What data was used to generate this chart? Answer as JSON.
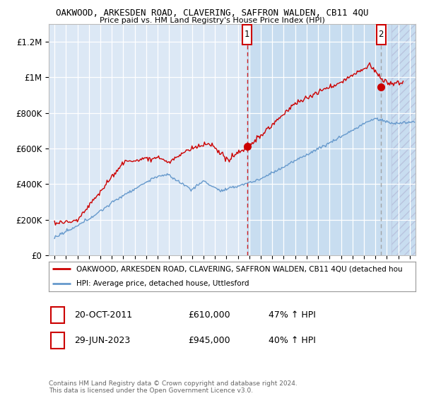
{
  "title1": "OAKWOOD, ARKESDEN ROAD, CLAVERING, SAFFRON WALDEN, CB11 4QU",
  "title2": "Price paid vs. HM Land Registry's House Price Index (HPI)",
  "ylabel_ticks": [
    "£0",
    "£200K",
    "£400K",
    "£600K",
    "£800K",
    "£1M",
    "£1.2M"
  ],
  "ylabel_values": [
    0,
    200000,
    400000,
    600000,
    800000,
    1000000,
    1200000
  ],
  "ylim": [
    0,
    1300000
  ],
  "xlim_start": 1994.5,
  "xlim_end": 2026.5,
  "background_color": "#dce8f5",
  "highlight_region_start": 2011.8,
  "highlight_region_color": "#c8ddf0",
  "hatch_region_start": 2024.4,
  "marker1_x": 2011.8,
  "marker1_y": 610000,
  "marker1_label": "1",
  "marker2_x": 2023.5,
  "marker2_y": 945000,
  "marker2_label": "2",
  "legend_red_label": "OAKWOOD, ARKESDEN ROAD, CLAVERING, SAFFRON WALDEN, CB11 4QU (detached hou",
  "legend_blue_label": "HPI: Average price, detached house, Uttlesford",
  "annotation1_date": "20-OCT-2011",
  "annotation1_price": "£610,000",
  "annotation1_hpi": "47% ↑ HPI",
  "annotation2_date": "29-JUN-2023",
  "annotation2_price": "£945,000",
  "annotation2_hpi": "40% ↑ HPI",
  "footer": "Contains HM Land Registry data © Crown copyright and database right 2024.\nThis data is licensed under the Open Government Licence v3.0.",
  "red_color": "#cc0000",
  "blue_color": "#6699cc",
  "dashed_red_color": "#cc0000",
  "dashed_gray_color": "#999999"
}
